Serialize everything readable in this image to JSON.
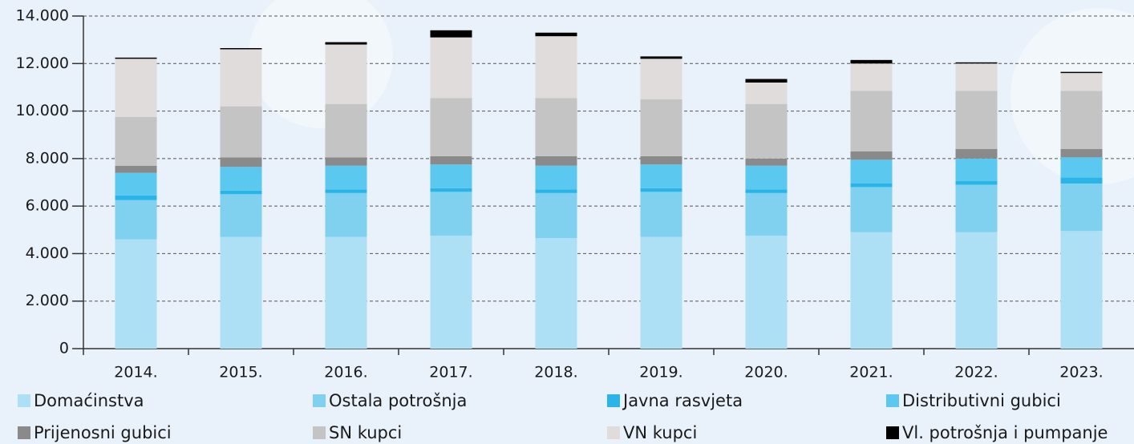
{
  "chart_data": {
    "type": "bar",
    "stacked": true,
    "categories": [
      "2014.",
      "2015.",
      "2016.",
      "2017.",
      "2018.",
      "2019.",
      "2020.",
      "2021.",
      "2022.",
      "2023."
    ],
    "series": [
      {
        "name": "Domaćinstva",
        "color": "#aee0f5",
        "values": [
          4600,
          4700,
          4700,
          4750,
          4650,
          4700,
          4750,
          4900,
          4900,
          4950
        ]
      },
      {
        "name": "Ostala potrošnja",
        "color": "#80d0f0",
        "values": [
          1650,
          1800,
          1850,
          1850,
          1900,
          1900,
          1800,
          1900,
          2000,
          2000
        ]
      },
      {
        "name": "Javna rasvjeta",
        "color": "#2ab5e8",
        "values": [
          200,
          150,
          150,
          150,
          150,
          150,
          150,
          150,
          150,
          250
        ]
      },
      {
        "name": "Distributivni gubici",
        "color": "#5ac8ef",
        "values": [
          950,
          1000,
          1000,
          1000,
          1000,
          1000,
          1000,
          1000,
          950,
          850
        ]
      },
      {
        "name": "Prijenosni gubici",
        "color": "#8a8a8a",
        "values": [
          300,
          400,
          350,
          350,
          400,
          350,
          300,
          350,
          400,
          350
        ]
      },
      {
        "name": "SN kupci",
        "color": "#c4c4c4",
        "values": [
          2050,
          2150,
          2250,
          2450,
          2450,
          2400,
          2300,
          2550,
          2450,
          2450
        ]
      },
      {
        "name": "VN kupci",
        "color": "#e0dcdc",
        "values": [
          2450,
          2400,
          2500,
          2550,
          2600,
          1700,
          900,
          1150,
          1150,
          750
        ]
      },
      {
        "name": "Vl. potrošnja i pumpanje",
        "color": "#000000",
        "values": [
          50,
          50,
          100,
          300,
          150,
          100,
          150,
          150,
          50,
          50
        ]
      }
    ],
    "ylim": [
      0,
      14000
    ],
    "yticks": [
      0,
      {
        "value": 2000,
        "label": "2.000"
      },
      {
        "value": 4000,
        "label": "4.000"
      },
      {
        "value": 6000,
        "label": "6.000"
      },
      {
        "value": 8000,
        "label": "8.000"
      },
      {
        "value": 10000,
        "label": "10.000"
      },
      {
        "value": 12000,
        "label": "12.000"
      },
      {
        "value": 14000,
        "label": "14.000"
      }
    ],
    "grid": true,
    "legend": "bottom"
  }
}
